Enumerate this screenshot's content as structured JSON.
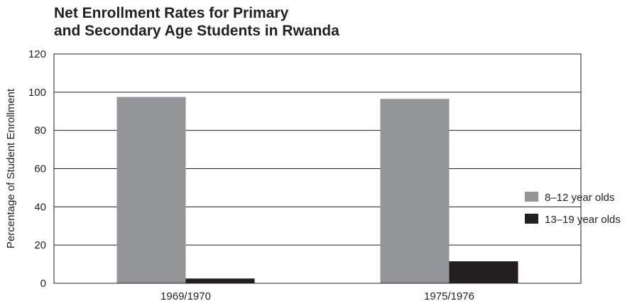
{
  "chart_data": {
    "type": "bar",
    "title": {
      "lines": [
        "Net Enrollment Rates for Primary",
        "and Secondary Age Students in Rwanda"
      ]
    },
    "xlabel": "",
    "ylabel": "Percentage of Student Enrollment",
    "categories": [
      "1969/1970",
      "1975/1976"
    ],
    "series": [
      {
        "name": "8–12 year olds",
        "values": [
          97.5,
          96.5
        ],
        "color": "#939598"
      },
      {
        "name": "13–19 year olds",
        "values": [
          2.5,
          11.5
        ],
        "color": "#231f20"
      }
    ],
    "ylim": [
      0,
      120
    ],
    "yticks": [
      0,
      20,
      40,
      60,
      80,
      100,
      120
    ],
    "grid": true,
    "legend_position": "right"
  }
}
